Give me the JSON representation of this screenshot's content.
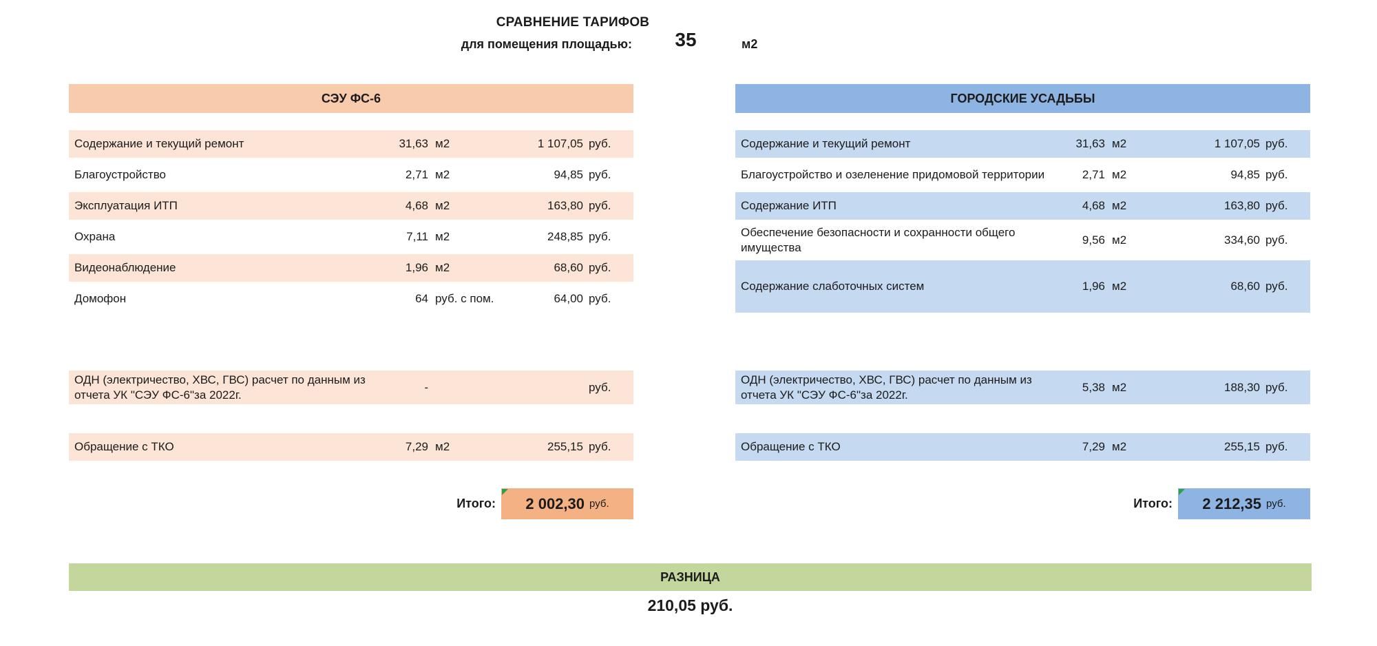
{
  "page": {
    "title": "СРАВНЕНИЕ ТАРИФОВ",
    "area_label": "для помещения площадью:",
    "area_value": "35",
    "area_unit": "м2"
  },
  "tables": {
    "left": {
      "header": "СЭУ ФС-6",
      "colors": {
        "header": "#F8CBAD",
        "row": "#FCE4D6",
        "total": "#F4B183"
      },
      "rows": [
        {
          "label": "Содержание и текущий ремонт",
          "qty": "31,63",
          "qty_unit": "м2",
          "price": "1 107,05",
          "price_unit": "руб.",
          "shaded": true
        },
        {
          "label": "Благоустройство",
          "qty": "2,71",
          "qty_unit": "м2",
          "price": "94,85",
          "price_unit": "руб.",
          "shaded": false
        },
        {
          "label": "Эксплуатация ИТП",
          "qty": "4,68",
          "qty_unit": "м2",
          "price": "163,80",
          "price_unit": "руб.",
          "shaded": true
        },
        {
          "label": "Охрана",
          "qty": "7,11",
          "qty_unit": "м2",
          "price": "248,85",
          "price_unit": "руб.",
          "shaded": false
        },
        {
          "label": "Видеонаблюдение",
          "qty": "1,96",
          "qty_unit": "м2",
          "price": "68,60",
          "price_unit": "руб.",
          "shaded": true
        },
        {
          "label": "Домофон",
          "qty": "64",
          "qty_unit": "руб. с пом.",
          "price": "64,00",
          "price_unit": "руб.",
          "shaded": false
        },
        {
          "label": "ОДН (электричество, ХВС, ГВС) расчет по данным из отчета УК \"СЭУ ФС-6\"за 2022г.",
          "qty": "-",
          "qty_unit": "",
          "price": "",
          "price_unit": "руб.",
          "shaded": true,
          "two_line": true,
          "gap": "lg"
        },
        {
          "label": "Обращение с ТКО",
          "qty": "7,29",
          "qty_unit": "м2",
          "price": "255,15",
          "price_unit": "руб.",
          "shaded": true,
          "gap": "md"
        }
      ],
      "total": {
        "label": "Итого:",
        "value": "2 002,30",
        "unit": "руб."
      }
    },
    "right": {
      "header": "ГОРОДСКИЕ УСАДЬБЫ",
      "colors": {
        "header": "#8DB4E2",
        "row": "#C5D9F1",
        "total": "#8DB4E2"
      },
      "rows": [
        {
          "label": "Содержание и текущий ремонт",
          "qty": "31,63",
          "qty_unit": "м2",
          "price": "1 107,05",
          "price_unit": "руб.",
          "shaded": true
        },
        {
          "label": "Благоустройство и озеленение придомовой территории",
          "qty": "2,71",
          "qty_unit": "м2",
          "price": "94,85",
          "price_unit": "руб.",
          "shaded": false
        },
        {
          "label": "Содержание ИТП",
          "qty": "4,68",
          "qty_unit": "м2",
          "price": "163,80",
          "price_unit": "руб.",
          "shaded": true
        },
        {
          "label": "Обеспечение безопасности и сохранности общего имущества",
          "qty": "9,56",
          "qty_unit": "м2",
          "price": "334,60",
          "price_unit": "руб.",
          "shaded": false,
          "two_line": true
        },
        {
          "label": "Содержание слаботочных систем",
          "qty": "1,96",
          "qty_unit": "м2",
          "price": "68,60",
          "price_unit": "руб.",
          "shaded": true,
          "tall": true
        },
        {
          "label": "ОДН (электричество, ХВС, ГВС) расчет по данным из отчета УК \"СЭУ ФС-6\"за 2022г.",
          "qty": "5,38",
          "qty_unit": "м2",
          "price": "188,30",
          "price_unit": "руб.",
          "shaded": true,
          "two_line": true,
          "gap": "lg"
        },
        {
          "label": "Обращение с ТКО",
          "qty": "7,29",
          "qty_unit": "м2",
          "price": "255,15",
          "price_unit": "руб.",
          "shaded": true,
          "gap": "md"
        }
      ],
      "total": {
        "label": "Итого:",
        "value": "2 212,35",
        "unit": "руб."
      }
    }
  },
  "difference": {
    "header": "РАЗНИЦА",
    "value": "210,05 руб.",
    "color": "#C3D69B"
  },
  "flag_color": "#2E9E4F"
}
